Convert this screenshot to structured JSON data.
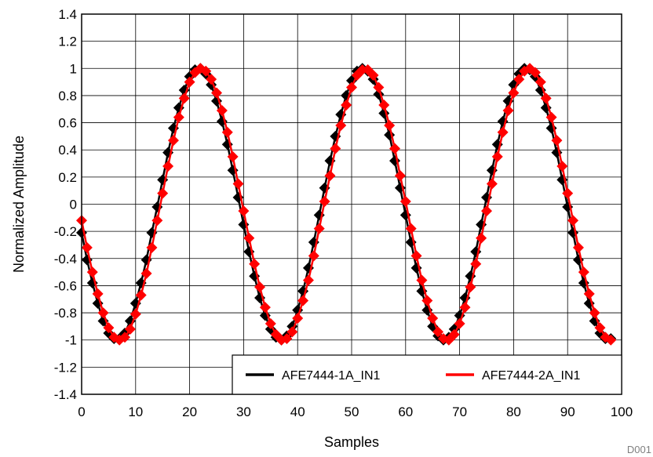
{
  "chart_data": {
    "type": "line",
    "title": "",
    "xlabel": "Samples",
    "ylabel": "Normalized Amplitude",
    "xlim": [
      0,
      100
    ],
    "ylim": [
      -1.4,
      1.4
    ],
    "xticks": [
      "0",
      "10",
      "20",
      "30",
      "40",
      "50",
      "60",
      "70",
      "80",
      "90",
      "100"
    ],
    "yticks": [
      "1.4",
      "1.2",
      "1",
      "0.8",
      "0.6",
      "0.4",
      "0.2",
      "0",
      "-0.2",
      "-0.4",
      "-0.6",
      "-0.8",
      "-1",
      "-1.2",
      "-1.4"
    ],
    "grid": true,
    "legend_position": "bottom-right",
    "marker": "diamond",
    "series": [
      {
        "name": "AFE7444-1A_IN1",
        "color": "#000000",
        "x": [
          0,
          1,
          2,
          3,
          4,
          5,
          6,
          7,
          8,
          9,
          10,
          11,
          12,
          13,
          14,
          15,
          16,
          17,
          18,
          19,
          20,
          21,
          22,
          23,
          24,
          25,
          26,
          27,
          28,
          29,
          30,
          31,
          32,
          33,
          34,
          35,
          36,
          37,
          38,
          39,
          40,
          41,
          42,
          43,
          44,
          45,
          46,
          47,
          48,
          49,
          50,
          51,
          52,
          53,
          54,
          55,
          56,
          57,
          58,
          59,
          60,
          61,
          62,
          63,
          64,
          65,
          66,
          67,
          68,
          69,
          70,
          71,
          72,
          73,
          74,
          75,
          76,
          77,
          78,
          79,
          80,
          81,
          82,
          83,
          84,
          85,
          86,
          87,
          88,
          89,
          90,
          91,
          92,
          93,
          94,
          95,
          96,
          97,
          98
        ],
        "y": [
          -0.21,
          -0.41,
          -0.58,
          -0.73,
          -0.86,
          -0.95,
          -0.99,
          -0.99,
          -0.95,
          -0.86,
          -0.73,
          -0.58,
          -0.41,
          -0.21,
          -0.02,
          0.18,
          0.38,
          0.56,
          0.71,
          0.84,
          0.94,
          0.99,
          1.0,
          0.96,
          0.88,
          0.76,
          0.61,
          0.44,
          0.25,
          0.05,
          -0.15,
          -0.35,
          -0.53,
          -0.69,
          -0.82,
          -0.92,
          -0.98,
          -1.0,
          -0.97,
          -0.9,
          -0.78,
          -0.64,
          -0.47,
          -0.28,
          -0.08,
          0.12,
          0.32,
          0.5,
          0.66,
          0.8,
          0.91,
          0.98,
          1.0,
          0.98,
          0.92,
          0.81,
          0.67,
          0.51,
          0.32,
          0.12,
          -0.08,
          -0.28,
          -0.47,
          -0.64,
          -0.78,
          -0.9,
          -0.97,
          -1.0,
          -0.98,
          -0.92,
          -0.82,
          -0.69,
          -0.53,
          -0.35,
          -0.15,
          0.05,
          0.25,
          0.44,
          0.61,
          0.76,
          0.88,
          0.96,
          1.0,
          0.99,
          0.94,
          0.84,
          0.71,
          0.56,
          0.38,
          0.18,
          -0.02,
          -0.21,
          -0.41,
          -0.58,
          -0.73,
          -0.86,
          -0.95,
          -0.99,
          -0.99
        ]
      },
      {
        "name": "AFE7444-2A_IN1",
        "color": "#ff0000",
        "x": [
          0,
          1,
          2,
          3,
          4,
          5,
          6,
          7,
          8,
          9,
          10,
          11,
          12,
          13,
          14,
          15,
          16,
          17,
          18,
          19,
          20,
          21,
          22,
          23,
          24,
          25,
          26,
          27,
          28,
          29,
          30,
          31,
          32,
          33,
          34,
          35,
          36,
          37,
          38,
          39,
          40,
          41,
          42,
          43,
          44,
          45,
          46,
          47,
          48,
          49,
          50,
          51,
          52,
          53,
          54,
          55,
          56,
          57,
          58,
          59,
          60,
          61,
          62,
          63,
          64,
          65,
          66,
          67,
          68,
          69,
          70,
          71,
          72,
          73,
          74,
          75,
          76,
          77,
          78,
          79,
          80,
          81,
          82,
          83,
          84,
          85,
          86,
          87,
          88,
          89,
          90,
          91,
          92,
          93,
          94,
          95,
          96,
          97,
          98
        ],
        "y": [
          -0.12,
          -0.32,
          -0.5,
          -0.66,
          -0.8,
          -0.91,
          -0.98,
          -1.0,
          -0.98,
          -0.92,
          -0.81,
          -0.67,
          -0.51,
          -0.32,
          -0.12,
          0.08,
          0.28,
          0.47,
          0.64,
          0.78,
          0.9,
          0.97,
          1.0,
          0.98,
          0.92,
          0.82,
          0.69,
          0.53,
          0.35,
          0.15,
          -0.05,
          -0.25,
          -0.44,
          -0.61,
          -0.76,
          -0.88,
          -0.96,
          -1.0,
          -0.99,
          -0.94,
          -0.84,
          -0.71,
          -0.56,
          -0.38,
          -0.18,
          0.02,
          0.21,
          0.41,
          0.58,
          0.73,
          0.86,
          0.95,
          0.99,
          0.99,
          0.95,
          0.86,
          0.73,
          0.58,
          0.41,
          0.21,
          0.02,
          -0.18,
          -0.38,
          -0.56,
          -0.71,
          -0.84,
          -0.94,
          -0.99,
          -1.0,
          -0.96,
          -0.88,
          -0.76,
          -0.61,
          -0.44,
          -0.25,
          -0.05,
          0.15,
          0.35,
          0.53,
          0.69,
          0.82,
          0.92,
          0.98,
          1.0,
          0.97,
          0.9,
          0.78,
          0.64,
          0.47,
          0.28,
          0.08,
          -0.12,
          -0.32,
          -0.5,
          -0.66,
          -0.8,
          -0.91,
          -0.98,
          -1.0
        ]
      }
    ]
  },
  "footnote": "D001"
}
